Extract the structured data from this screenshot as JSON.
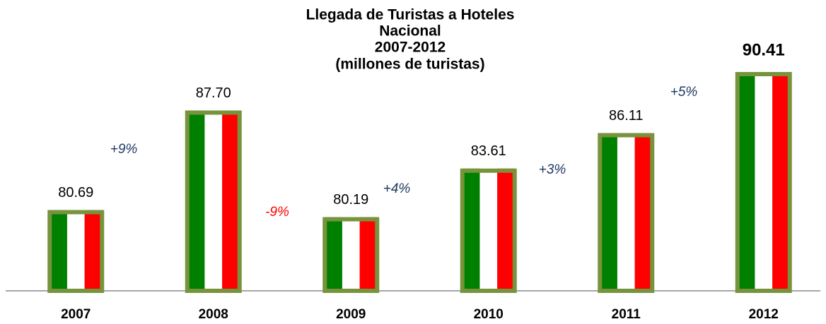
{
  "chart_data": {
    "type": "bar",
    "title": [
      "Llegada de Turistas a Hoteles",
      "Nacional",
      "2007-2012",
      "(millones de turistas)"
    ],
    "categories": [
      "2007",
      "2008",
      "2009",
      "2010",
      "2011",
      "2012"
    ],
    "values": [
      80.69,
      87.7,
      80.19,
      83.61,
      86.11,
      90.41
    ],
    "value_labels": [
      "80.69",
      "87.70",
      "80.19",
      "83.61",
      "86.11",
      "90.41"
    ],
    "colors": [
      "#008000",
      "#ffffff",
      "#ff0000"
    ],
    "edge_color": "#77933c",
    "ylim": [
      75,
      92
    ],
    "annotations": [
      {
        "text": "+9%",
        "color": "#1f3864"
      },
      {
        "text": "-9%",
        "color": "#ff0000"
      },
      {
        "text": "+4%",
        "color": "#1f3864"
      },
      {
        "text": "+3%",
        "color": "#1f3864"
      },
      {
        "text": "+5%",
        "color": "#1f3864"
      }
    ]
  }
}
